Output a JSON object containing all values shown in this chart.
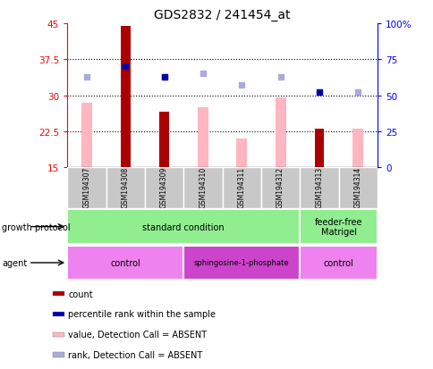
{
  "title": "GDS2832 / 241454_at",
  "samples": [
    "GSM194307",
    "GSM194308",
    "GSM194309",
    "GSM194310",
    "GSM194311",
    "GSM194312",
    "GSM194313",
    "GSM194314"
  ],
  "count_values": [
    null,
    44.5,
    26.5,
    null,
    null,
    null,
    23.0,
    null
  ],
  "value_absent": [
    28.5,
    null,
    null,
    27.5,
    21.0,
    29.5,
    null,
    23.0
  ],
  "rank_present_pct": [
    null,
    70.0,
    63.0,
    null,
    null,
    null,
    52.0,
    null
  ],
  "rank_absent_pct": [
    63.0,
    null,
    63.0,
    65.0,
    57.0,
    63.0,
    null,
    52.0
  ],
  "ylim_left": [
    15,
    45
  ],
  "ylim_right": [
    0,
    100
  ],
  "yticks_left": [
    15,
    22.5,
    30,
    37.5,
    45
  ],
  "yticks_right": [
    0,
    25,
    50,
    75,
    100
  ],
  "ytick_labels_left": [
    "15",
    "22.5",
    "30",
    "37.5",
    "45"
  ],
  "ytick_labels_right": [
    "0",
    "25",
    "50",
    "75",
    "100%"
  ],
  "hlines": [
    22.5,
    30,
    37.5
  ],
  "growth_protocol_groups": [
    {
      "label": "standard condition",
      "start": 0,
      "end": 6,
      "color": "#90EE90"
    },
    {
      "label": "feeder-free\nMatrigel",
      "start": 6,
      "end": 8,
      "color": "#90EE90"
    }
  ],
  "agent_groups": [
    {
      "label": "control",
      "start": 0,
      "end": 3,
      "color": "#EE82EE"
    },
    {
      "label": "sphingosine-1-phosphate",
      "start": 3,
      "end": 6,
      "color": "#CC44CC"
    },
    {
      "label": "control",
      "start": 6,
      "end": 8,
      "color": "#EE82EE"
    }
  ],
  "color_count": "#AA0000",
  "color_rank_present": "#0000AA",
  "color_value_absent": "#FFB6C1",
  "color_rank_absent": "#AAAADD",
  "count_bar_width": 0.25,
  "value_bar_width": 0.28,
  "legend_items": [
    {
      "label": "count",
      "color": "#AA0000"
    },
    {
      "label": "percentile rank within the sample",
      "color": "#0000AA"
    },
    {
      "label": "value, Detection Call = ABSENT",
      "color": "#FFB6C1"
    },
    {
      "label": "rank, Detection Call = ABSENT",
      "color": "#AAAADD"
    }
  ]
}
